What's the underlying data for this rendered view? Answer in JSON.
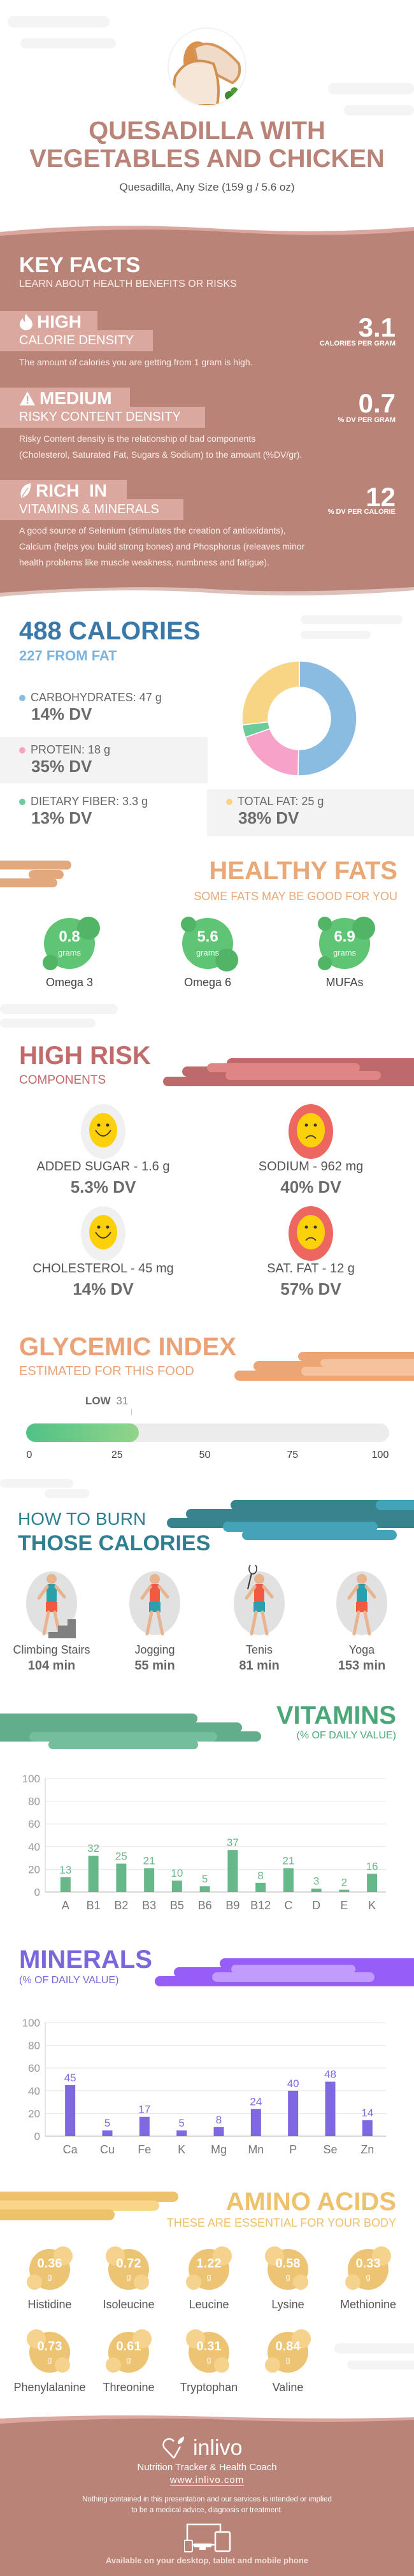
{
  "header": {
    "title_line1": "QUESADILLA WITH",
    "title_line2": "VEGETABLES AND CHICKEN",
    "serving": "Quesadilla, Any Size (159 g / 5.6 oz)"
  },
  "key_facts": {
    "title": "KEY FACTS",
    "subtitle": "LEARN ABOUT HEALTH BENEFITS OR RISKS",
    "items": [
      {
        "icon": "fire-icon",
        "level": "HIGH",
        "label": "CALORIE DENSITY",
        "value": "3.1",
        "unit": "CALORIES PER GRAM",
        "desc": [
          "The amount of calories you are getting from 1 gram is high."
        ]
      },
      {
        "icon": "warning-icon",
        "level": "MEDIUM",
        "label": "RISKY CONTENT DENSITY",
        "value": "0.7",
        "unit": "% DV PER GRAM",
        "desc": [
          "Risky Content density is the relationship of bad components",
          "(Cholesterol, Saturated Fat, Sugars & Sodium) to the amount (%DV/gr)."
        ]
      },
      {
        "icon": "leaf-icon",
        "level": "RICH  IN",
        "label": "VITAMINS & MINERALS",
        "value": "12",
        "unit": "% DV PER CALORIE",
        "desc": [
          "A good source of Selenium (stimulates the creation of antioxidants),",
          "Calcium (helps you build strong bones) and Phosphorus (releaves minor",
          "health problems like muscle weakness, numbness and fatigue)."
        ]
      }
    ]
  },
  "calories": {
    "title": "488 CALORIES",
    "subtitle": "227 FROM FAT",
    "macros": [
      {
        "label": "CARBOHYDRATES: 47 g",
        "dv": "14% DV",
        "grams": 47,
        "color": "#8abbe0"
      },
      {
        "label": "PROTEIN: 18 g",
        "dv": "35% DV",
        "grams": 18,
        "color": "#f7a3c8"
      },
      {
        "label": "DIETARY FIBER: 3.3 g",
        "dv": "13% DV",
        "grams": 3.3,
        "color": "#6ccb9a"
      },
      {
        "label": "TOTAL FAT: 25 g",
        "dv": "38% DV",
        "grams": 25,
        "color": "#f8d584"
      }
    ]
  },
  "healthy_fats": {
    "title": "HEALTHY FATS",
    "subtitle": "SOME FATS MAY BE GOOD FOR YOU",
    "items": [
      {
        "value": "0.8",
        "unit": "grams",
        "name": "Omega 3"
      },
      {
        "value": "5.6",
        "unit": "grams",
        "name": "Omega 6"
      },
      {
        "value": "6.9",
        "unit": "grams",
        "name": "MUFAs"
      }
    ]
  },
  "high_risk": {
    "title": "HIGH RISK",
    "subtitle": "COMPONENTS",
    "items": [
      {
        "label": "ADDED SUGAR - 1.6 g",
        "dv": "5.3% DV",
        "mood": "happy"
      },
      {
        "label": "SODIUM - 962 mg",
        "dv": "40% DV",
        "mood": "sad"
      },
      {
        "label": "CHOLESTEROL - 45 mg",
        "dv": "14% DV",
        "mood": "happy"
      },
      {
        "label": "SAT. FAT - 12 g",
        "dv": "57% DV",
        "mood": "sad"
      }
    ]
  },
  "glycemic": {
    "title": "GLYCEMIC INDEX",
    "subtitle": "ESTIMATED FOR THIS FOOD",
    "level": "LOW",
    "value": "31",
    "ticks": [
      "0",
      "25",
      "50",
      "75",
      "100"
    ]
  },
  "burn": {
    "title_line1": "HOW TO BURN",
    "title_line2": "THOSE CALORIES",
    "items": [
      {
        "name": "Climbing Stairs",
        "time": "104 min",
        "icon": "stairs-icon"
      },
      {
        "name": "Jogging",
        "time": "55 min",
        "icon": "jogging-icon"
      },
      {
        "name": "Tenis",
        "time": "81 min",
        "icon": "tennis-icon"
      },
      {
        "name": "Yoga",
        "time": "153 min",
        "icon": "yoga-icon"
      }
    ]
  },
  "chart_data": [
    {
      "type": "bar",
      "title": "VITAMINS",
      "subtitle": "(% OF DAILY VALUE)",
      "categories": [
        "A",
        "B1",
        "B2",
        "B3",
        "B5",
        "B6",
        "B9",
        "B12",
        "C",
        "D",
        "E",
        "K"
      ],
      "values": [
        13,
        32,
        25,
        21,
        10,
        5,
        37,
        8,
        21,
        3,
        2,
        16
      ],
      "ylim": [
        0,
        100
      ],
      "yticks": [
        "0",
        "20",
        "40",
        "60",
        "80",
        "100"
      ],
      "grid": true,
      "color": "#67b889"
    },
    {
      "type": "bar",
      "title": "MINERALS",
      "subtitle": "(% OF DAILY VALUE)",
      "categories": [
        "Ca",
        "Cu",
        "Fe",
        "K",
        "Mg",
        "Mn",
        "P",
        "Se",
        "Zn"
      ],
      "values": [
        45,
        5,
        17,
        5,
        8,
        24,
        40,
        48,
        14
      ],
      "ylim": [
        0,
        100
      ],
      "yticks": [
        "0",
        "20",
        "40",
        "60",
        "80",
        "100"
      ],
      "grid": true,
      "color": "#7f68e0"
    }
  ],
  "amino": {
    "title": "AMINO ACIDS",
    "subtitle": "THESE ARE ESSENTIAL FOR YOUR BODY",
    "unit": "g",
    "items": [
      {
        "value": "0.36",
        "name": "Histidine"
      },
      {
        "value": "0.72",
        "name": "Isoleucine"
      },
      {
        "value": "1.22",
        "name": "Leucine"
      },
      {
        "value": "0.58",
        "name": "Lysine"
      },
      {
        "value": "0.33",
        "name": "Methionine"
      },
      {
        "value": "0.73",
        "name": "Phenylalanine"
      },
      {
        "value": "0.61",
        "name": "Threonine"
      },
      {
        "value": "0.31",
        "name": "Tryptophan"
      },
      {
        "value": "0.84",
        "name": "Valine"
      }
    ]
  },
  "footer": {
    "brand": "inlivo",
    "tagline": "Nutrition Tracker & Health Coach",
    "url": "www.inlivo.com",
    "disclaimer_line1": "Nothing contained in this presentation and our services is intended or implied",
    "disclaimer_line2": "to be a medical advice, diagnosis or treatment.",
    "available": "Available on your desktop, tablet and mobile phone"
  },
  "colors": {
    "brown": "#b98378",
    "calories_blue": "#3a78a8",
    "fats_orange": "#e8a878",
    "risk_red": "#c06a6a",
    "glycemic_orange": "#eba276",
    "burn_teal": "#2f7f90",
    "vitamins_green": "#4aa878",
    "minerals_purple": "#7a66dd",
    "amino_yellow": "#eec26a"
  }
}
